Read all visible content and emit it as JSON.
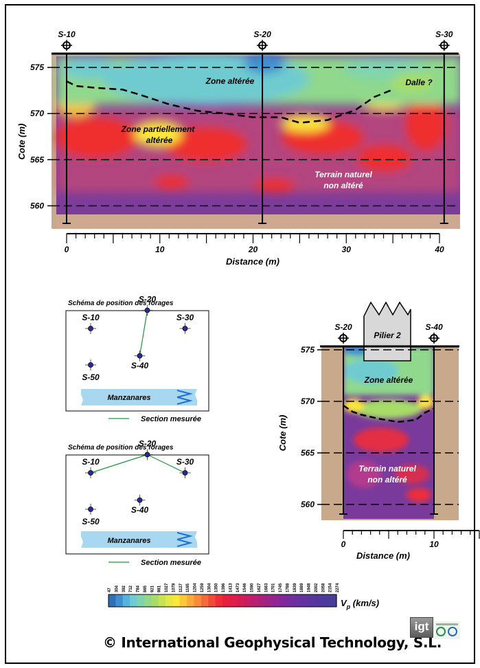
{
  "chart_data": [
    {
      "type": "heatmap",
      "boreholes": [
        {
          "label": "S-10",
          "x": 0
        },
        {
          "label": "S-20",
          "x": 21
        },
        {
          "label": "S-30",
          "x": 40.5
        }
      ],
      "xlabel": "Distance (m)",
      "ylabel": "Cote (m)",
      "xlim": [
        0,
        40
      ],
      "xticks": [
        "0",
        "10",
        "20",
        "30",
        "40"
      ],
      "ylim": [
        557.5,
        576.5
      ],
      "yticks": [
        "575",
        "570",
        "565",
        "560"
      ],
      "annotations": [
        {
          "text": "Zone altérée"
        },
        {
          "text": "Dalle ?"
        },
        {
          "text": "Zone partiellement"
        },
        {
          "text": "altérée"
        },
        {
          "text": "Terrain naturel"
        },
        {
          "text": "non altéré"
        }
      ],
      "interface": {
        "x": [
          0,
          1,
          3,
          6,
          8,
          11,
          14,
          17,
          20,
          23,
          25,
          28,
          31,
          33,
          35
        ],
        "y": [
          573.5,
          573,
          572.8,
          572.6,
          572,
          571,
          570.3,
          570,
          569.6,
          569.6,
          569,
          569.3,
          570.4,
          571.8,
          572.6
        ]
      }
    },
    {
      "type": "heatmap",
      "boreholes": [
        {
          "label": "S-20",
          "x": 0
        },
        {
          "label": "S-40",
          "x": 10
        }
      ],
      "structure_label": "Pilier 2",
      "xlabel": "Distance (m)",
      "ylabel": "Cote (m)",
      "xlim": [
        0,
        10
      ],
      "xticks": [
        "0",
        "10"
      ],
      "ylim": [
        558,
        576
      ],
      "yticks": [
        "575",
        "570",
        "565",
        "560"
      ],
      "annotations": [
        {
          "text": "Zone altérée"
        },
        {
          "text": "Terrain naturel"
        },
        {
          "text": "non altéré"
        }
      ],
      "interface": {
        "x": [
          0,
          1,
          2,
          4,
          6,
          8,
          9,
          10
        ],
        "y": [
          569.6,
          569,
          568.7,
          568.3,
          568,
          568.2,
          568.9,
          569.3
        ]
      }
    },
    {
      "type": "scatter",
      "title": "Schéma de position des forages",
      "points": [
        {
          "label": "S-10",
          "x": 1,
          "y": 2
        },
        {
          "label": "S-20",
          "x": 4,
          "y": 3
        },
        {
          "label": "S-30",
          "x": 6,
          "y": 2
        },
        {
          "label": "S-40",
          "x": 3.6,
          "y": 0.5
        },
        {
          "label": "S-50",
          "x": 1,
          "y": 0
        }
      ],
      "river": "Manzanares",
      "section": [
        "S-20",
        "S-40"
      ],
      "legend": "Section mesurée"
    },
    {
      "type": "scatter",
      "title": "Schéma de position des forages",
      "points": [
        {
          "label": "S-10",
          "x": 1,
          "y": 2
        },
        {
          "label": "S-20",
          "x": 4,
          "y": 3
        },
        {
          "label": "S-30",
          "x": 6,
          "y": 2
        },
        {
          "label": "S-40",
          "x": 3.6,
          "y": 0.5
        },
        {
          "label": "S-50",
          "x": 1,
          "y": 0
        }
      ],
      "river": "Manzanares",
      "section": [
        "S-10",
        "S-20",
        "S-30"
      ],
      "legend": "Section mesurée"
    },
    {
      "type": "colorbar",
      "label": "Vp (km/s)",
      "label_main": "V",
      "label_sub": "p",
      "label_units": " (km/s)",
      "ticks": [
        "47",
        "304",
        "392",
        "712",
        "784",
        "865",
        "921",
        "981",
        "1027",
        "1078",
        "1127",
        "1165",
        "1204",
        "1259",
        "1304",
        "1350",
        "1396",
        "1413",
        "1473",
        "1546",
        "1590",
        "1627",
        "1663",
        "1701",
        "1745",
        "1788",
        "1839",
        "1889",
        "1948",
        "2002",
        "2058",
        "2154",
        "2274"
      ],
      "colors": [
        "#2f6fb5",
        "#3f8fcf",
        "#55b3dd",
        "#6fcbd0",
        "#7fd4b0",
        "#8fd88c",
        "#a7dc67",
        "#c7e253",
        "#e6e744",
        "#fbe63a",
        "#fcc83a",
        "#fba93a",
        "#f98a3a",
        "#f56a3a",
        "#f24a3a",
        "#ee2d3b",
        "#e8203f",
        "#e01e4a",
        "#d41d57",
        "#c71d63",
        "#b91e70",
        "#ab207d",
        "#9c238a",
        "#8f2693",
        "#81299a",
        "#752c9e",
        "#6a2fa0",
        "#6132a0",
        "#59359f",
        "#52389d",
        "#4c3b9a",
        "#463e97"
      ]
    }
  ],
  "footer": "© International Geophysical Technology, S.L.",
  "logo_text": "igt",
  "colors": {
    "low": "#3f8fcf",
    "mid": "#fbe63a",
    "high": "#ee2d3b",
    "max": "#463e97",
    "ground": "#c9a98c"
  }
}
